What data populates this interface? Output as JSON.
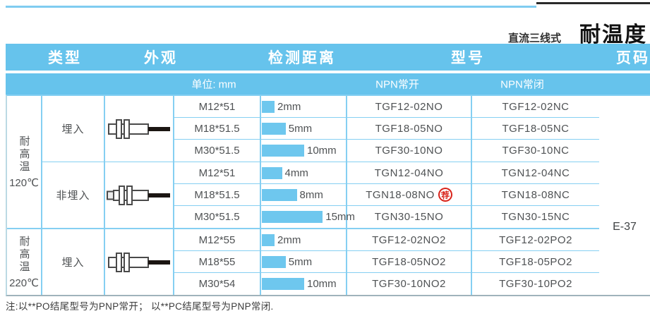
{
  "page_header": {
    "series": "直流三线式",
    "title": "耐温度"
  },
  "table": {
    "headers": {
      "type": "类型",
      "appearance": "外观",
      "distance": "检测距离",
      "model": "型号",
      "page": "页码"
    },
    "subheaders": {
      "unit": "单位: mm",
      "npn_no": "NPN常开",
      "npn_nc": "NPN常闭"
    },
    "groups": [
      {
        "temp_label": "耐高温",
        "temp_value": "120℃",
        "subgroups": [
          {
            "type": "埋入",
            "appearance_icon": "flush-sensor",
            "rows": [
              {
                "size": "M12*51",
                "distance_mm": 2,
                "distance_label": "2mm",
                "model_no": "TGF12-02NO",
                "model_nc": "TGF12-02NC"
              },
              {
                "size": "M18*51.5",
                "distance_mm": 5,
                "distance_label": "5mm",
                "model_no": "TGF18-05NO",
                "model_nc": "TGF18-05NC"
              },
              {
                "size": "M30*51.5",
                "distance_mm": 10,
                "distance_label": "10mm",
                "model_no": "TGF30-10NO",
                "model_nc": "TGF30-10NC"
              }
            ]
          },
          {
            "type": "非埋入",
            "appearance_icon": "non-flush-sensor",
            "rows": [
              {
                "size": "M12*51",
                "distance_mm": 4,
                "distance_label": "4mm",
                "model_no": "TGN12-04NO",
                "model_nc": "TGN12-04NC"
              },
              {
                "size": "M18*51.5",
                "distance_mm": 8,
                "distance_label": "8mm",
                "model_no": "TGN18-08NO",
                "badge": "荐",
                "model_nc": "TGN18-08NC"
              },
              {
                "size": "M30*51.5",
                "distance_mm": 15,
                "distance_label": "15mm",
                "model_no": "TGN30-15NO",
                "model_nc": "TGN30-15NC"
              }
            ]
          }
        ]
      },
      {
        "temp_label": "耐高温",
        "temp_value": "220℃",
        "subgroups": [
          {
            "type": "埋入",
            "appearance_icon": "flush-sensor",
            "rows": [
              {
                "size": "M12*55",
                "distance_mm": 2,
                "distance_label": "2mm",
                "model_no": "TGF12-02NO2",
                "model_nc": "TGF12-02PO2"
              },
              {
                "size": "M18*55",
                "distance_mm": 5,
                "distance_label": "5mm",
                "model_no": "TGF18-05NO2",
                "model_nc": "TGF18-05PO2"
              },
              {
                "size": "M30*54",
                "distance_mm": 10,
                "distance_label": "10mm",
                "model_no": "TGF30-10NO2",
                "model_nc": "TGF30-10PO2"
              }
            ]
          }
        ]
      }
    ],
    "page_ref": "E-37"
  },
  "footnote": "注:以**PO结尾型号为PNP常开； 以**PC结尾型号为PNP常闭.",
  "colors": {
    "header_band": "#66c3ec",
    "grid_line": "#85cff2",
    "bar": "#6ec7ee",
    "stamp_red": "#d9251c",
    "accent_black": "#2a2a2a"
  }
}
